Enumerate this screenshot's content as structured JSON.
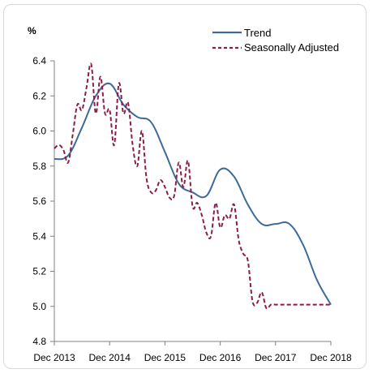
{
  "chart_data": {
    "type": "line",
    "ylabel": "%",
    "ylim": [
      4.8,
      6.4
    ],
    "yticks": [
      "4.8",
      "5.0",
      "5.2",
      "5.4",
      "5.6",
      "5.8",
      "6.0",
      "6.2",
      "6.4"
    ],
    "xticks": [
      "Dec 2013",
      "Dec 2014",
      "Dec 2015",
      "Dec 2016",
      "Dec 2017",
      "Dec 2018"
    ],
    "grid": false,
    "legend_position": "top-right",
    "x_unit": "months since Dec 2013",
    "series": [
      {
        "name": "Trend",
        "style": "solid",
        "color": "#3e6a9a",
        "x": [
          0,
          3,
          6,
          9,
          12,
          15,
          18,
          21,
          24,
          27,
          30,
          33,
          36,
          39,
          42,
          45,
          48,
          51,
          54,
          57,
          60
        ],
        "values": [
          5.84,
          5.86,
          6.02,
          6.2,
          6.27,
          6.15,
          6.08,
          6.05,
          5.88,
          5.7,
          5.65,
          5.63,
          5.78,
          5.74,
          5.58,
          5.47,
          5.47,
          5.47,
          5.35,
          5.15,
          5.01
        ]
      },
      {
        "name": "Seasonally Adjusted",
        "style": "dashed",
        "color": "#8a1e4a",
        "x": [
          0,
          1,
          2,
          3,
          4,
          5,
          6,
          7,
          8,
          9,
          10,
          11,
          12,
          13,
          14,
          15,
          16,
          17,
          18,
          19,
          20,
          21,
          22,
          23,
          24,
          25,
          26,
          27,
          28,
          29,
          30,
          31,
          32,
          33,
          34,
          35,
          36,
          37,
          38,
          39,
          40,
          41,
          42,
          43,
          44,
          45,
          46,
          47,
          48,
          49,
          50,
          51,
          52,
          53,
          54,
          55,
          56,
          57,
          58,
          59,
          60
        ],
        "values": [
          5.9,
          5.92,
          5.89,
          5.82,
          5.98,
          6.15,
          6.12,
          6.25,
          6.38,
          6.1,
          6.31,
          6.1,
          6.12,
          5.92,
          6.27,
          6.1,
          6.16,
          5.92,
          5.8,
          6.0,
          5.73,
          5.65,
          5.66,
          5.72,
          5.68,
          5.62,
          5.63,
          5.82,
          5.68,
          5.83,
          5.57,
          5.59,
          5.52,
          5.42,
          5.4,
          5.59,
          5.45,
          5.52,
          5.5,
          5.58,
          5.38,
          5.3,
          5.26,
          5.03,
          5.02,
          5.08,
          4.99,
          5.01,
          5.01,
          5.01,
          5.01,
          5.01,
          5.01,
          5.01,
          5.01,
          5.01,
          5.01,
          5.01,
          5.01,
          5.01,
          5.01
        ]
      }
    ]
  }
}
